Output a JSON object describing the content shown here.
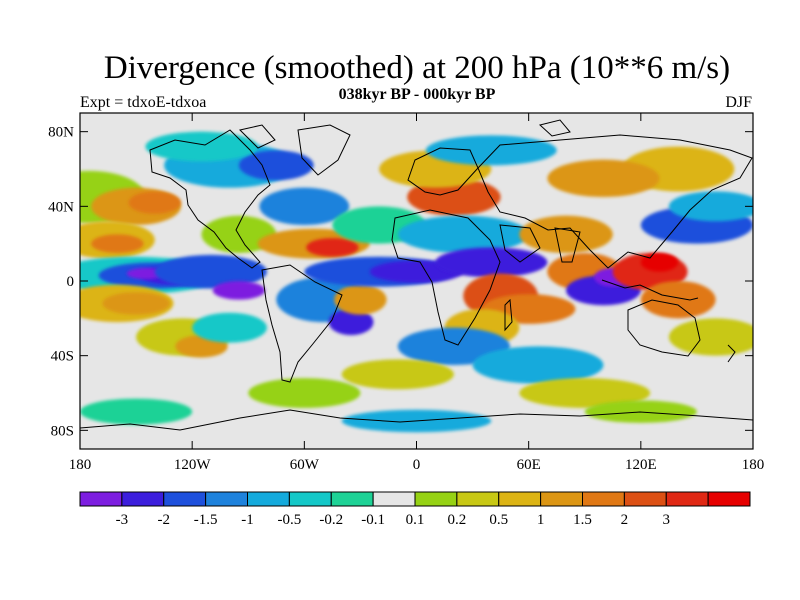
{
  "title": "Divergence (smoothed) at 200 hPa (10**6 m/s)",
  "subtitle": "038kyr BP - 000kyr BP",
  "left_label": "Expt = tdxoE-tdxoa",
  "right_label": "DJF",
  "map": {
    "x_ticks": [
      "180",
      "120W",
      "60W",
      "0",
      "60E",
      "120E",
      "180"
    ],
    "y_ticks": [
      "80N",
      "40N",
      "0",
      "40S",
      "80S"
    ],
    "lon_range": [
      -180,
      180
    ],
    "lat_range": [
      -90,
      90
    ]
  },
  "colorbar": {
    "colors": [
      "#7d1ee0",
      "#3c1edc",
      "#1e50dc",
      "#1e82dc",
      "#14aadc",
      "#14c8c8",
      "#1ed296",
      "#e6e6e6",
      "#96d214",
      "#c8c814",
      "#dcb414",
      "#dc9614",
      "#e07814",
      "#dc5014",
      "#e02814",
      "#e60000"
    ],
    "labels": [
      "-3",
      "-2",
      "-1.5",
      "-1",
      "-0.5",
      "-0.2",
      "-0.1",
      "0.1",
      "0.2",
      "0.5",
      "1",
      "1.5",
      "2",
      "3"
    ]
  }
}
